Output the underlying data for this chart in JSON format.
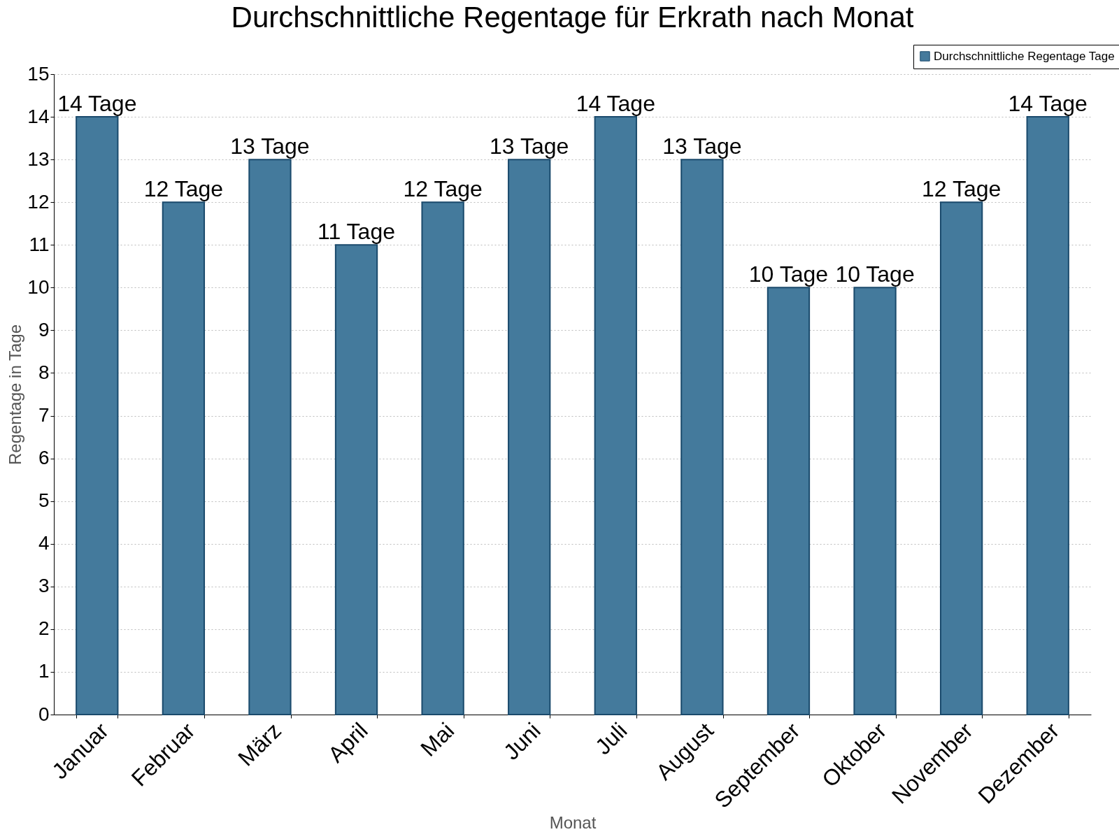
{
  "chart_data": {
    "type": "bar",
    "title": "Durchschnittliche Regentage für Erkrath nach Monat",
    "xlabel": "Monat",
    "ylabel": "Regentage in Tage",
    "categories": [
      "Januar",
      "Februar",
      "März",
      "April",
      "Mai",
      "Juni",
      "Juli",
      "August",
      "September",
      "Oktober",
      "November",
      "Dezember"
    ],
    "series": [
      {
        "name": "Durchschnittliche Regentage Tage",
        "color": "#447a9c",
        "values": [
          14,
          12,
          13,
          11,
          12,
          13,
          14,
          13,
          10,
          10,
          12,
          14
        ],
        "value_labels": [
          "14 Tage",
          "12 Tage",
          "13 Tage",
          "11 Tage",
          "12 Tage",
          "13 Tage",
          "14 Tage",
          "13 Tage",
          "10 Tage",
          "10 Tage",
          "12 Tage",
          "14 Tage"
        ]
      }
    ],
    "ylim": [
      0,
      15
    ],
    "yticks": [
      0,
      1,
      2,
      3,
      4,
      5,
      6,
      7,
      8,
      9,
      10,
      11,
      12,
      13,
      14,
      15
    ],
    "grid": "y",
    "legend": "top right"
  }
}
